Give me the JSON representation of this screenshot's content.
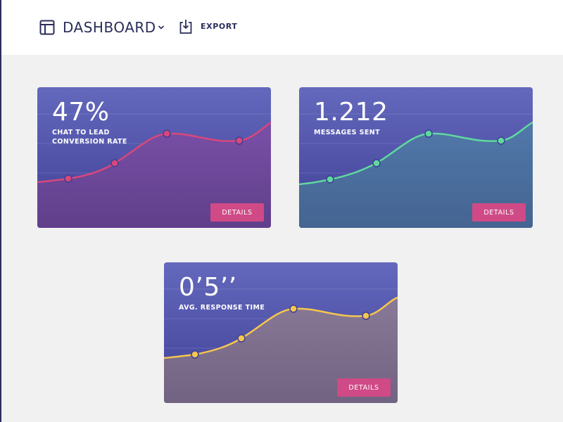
{
  "header": {
    "title": "DASHBOARD",
    "export_label": "EXPORT"
  },
  "cards": [
    {
      "id": "conversion",
      "metric": "47%",
      "label_lines": [
        "CHAT TO LEAD",
        "CONVERSION RATE"
      ],
      "button": "DETAILS",
      "accent": "#d9477a",
      "fill_top": "#7b4fa6",
      "fill_bottom": "#623f8a",
      "points": [
        0.12,
        0.22,
        0.71,
        0.68,
        0.95
      ]
    },
    {
      "id": "messages",
      "metric": "1.212",
      "label_lines": [
        "MESSAGES SENT"
      ],
      "button": "DETAILS",
      "accent": "#5fd99e",
      "fill_top": "#4f7aaa",
      "fill_bottom": "#456691",
      "points": [
        0.05,
        0.18,
        0.72,
        0.68,
        0.92
      ]
    },
    {
      "id": "response",
      "metric": "0’5’’",
      "label_lines": [
        "AVG. RESPONSE TIME"
      ],
      "button": "DETAILS",
      "accent": "#f4c64e",
      "fill_top": "#8a7a96",
      "fill_bottom": "#726480",
      "points": [
        0.05,
        0.14,
        0.66,
        0.6,
        0.84
      ]
    }
  ],
  "colors": {
    "card_top": "#6469bd",
    "card_mid": "#4a4aa0",
    "background": "#f1f1f1",
    "header_text": "#2a2d5a",
    "button": "#cf4a86"
  }
}
